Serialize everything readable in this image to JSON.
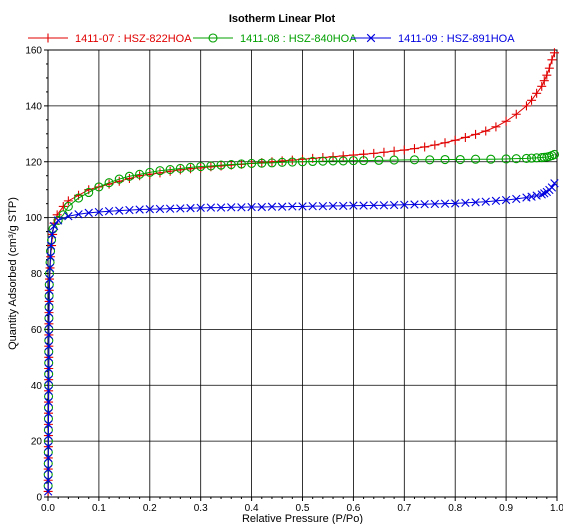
{
  "chart_data": {
    "type": "line",
    "title": "Isotherm Linear Plot",
    "xlabel": "Relative Pressure (P/Po)",
    "ylabel": "Quantity Adsorbed (cm³/g STP)",
    "xlim": [
      0,
      1.0
    ],
    "ylim": [
      0,
      160
    ],
    "xticks": [
      "0.0",
      "0.1",
      "0.2",
      "0.3",
      "0.4",
      "0.5",
      "0.6",
      "0.7",
      "0.8",
      "0.9",
      "1.0"
    ],
    "yticks": [
      "0",
      "20",
      "40",
      "60",
      "80",
      "100",
      "120",
      "140",
      "160"
    ],
    "grid": true,
    "legend_position": "top",
    "series": [
      {
        "name": "1411-07 : HSZ-822HOA",
        "color": "#e00000",
        "marker": "plus",
        "points": [
          [
            0.0003,
            2
          ],
          [
            0.0004,
            6
          ],
          [
            0.0005,
            10
          ],
          [
            0.0006,
            14
          ],
          [
            0.0007,
            18
          ],
          [
            0.0008,
            22
          ],
          [
            0.0009,
            26
          ],
          [
            0.001,
            30
          ],
          [
            0.0011,
            34
          ],
          [
            0.0012,
            38
          ],
          [
            0.0013,
            42
          ],
          [
            0.0014,
            46
          ],
          [
            0.0015,
            50
          ],
          [
            0.0016,
            54
          ],
          [
            0.0017,
            58
          ],
          [
            0.0018,
            62
          ],
          [
            0.002,
            66
          ],
          [
            0.0022,
            70
          ],
          [
            0.0025,
            74
          ],
          [
            0.003,
            78
          ],
          [
            0.004,
            82
          ],
          [
            0.005,
            86
          ],
          [
            0.007,
            90
          ],
          [
            0.009,
            94
          ],
          [
            0.012,
            98
          ],
          [
            0.018,
            101
          ],
          [
            0.03,
            104
          ],
          [
            0.04,
            106
          ],
          [
            0.06,
            108
          ],
          [
            0.08,
            110
          ],
          [
            0.1,
            111
          ],
          [
            0.12,
            112
          ],
          [
            0.14,
            113
          ],
          [
            0.16,
            114
          ],
          [
            0.18,
            115
          ],
          [
            0.2,
            115.5
          ],
          [
            0.22,
            116
          ],
          [
            0.24,
            116.6
          ],
          [
            0.26,
            117.1
          ],
          [
            0.28,
            117.5
          ],
          [
            0.3,
            117.8
          ],
          [
            0.32,
            118.2
          ],
          [
            0.34,
            118.5
          ],
          [
            0.36,
            118.8
          ],
          [
            0.38,
            119.1
          ],
          [
            0.4,
            119.4
          ],
          [
            0.42,
            119.7
          ],
          [
            0.44,
            120
          ],
          [
            0.46,
            120.3
          ],
          [
            0.48,
            120.6
          ],
          [
            0.5,
            120.9
          ],
          [
            0.52,
            121.2
          ],
          [
            0.54,
            121.5
          ],
          [
            0.56,
            121.8
          ],
          [
            0.58,
            122.1
          ],
          [
            0.6,
            122.4
          ],
          [
            0.62,
            122.7
          ],
          [
            0.64,
            123
          ],
          [
            0.66,
            123.4
          ],
          [
            0.68,
            123.8
          ],
          [
            0.7,
            124.2
          ],
          [
            0.72,
            124.7
          ],
          [
            0.74,
            125.3
          ],
          [
            0.76,
            126
          ],
          [
            0.78,
            126.8
          ],
          [
            0.8,
            127.7
          ],
          [
            0.82,
            128.7
          ],
          [
            0.84,
            129.8
          ],
          [
            0.86,
            131
          ],
          [
            0.88,
            132.5
          ],
          [
            0.9,
            134.5
          ],
          [
            0.92,
            137
          ],
          [
            0.94,
            140
          ],
          [
            0.95,
            142
          ],
          [
            0.96,
            144.5
          ],
          [
            0.97,
            147
          ],
          [
            0.975,
            149
          ],
          [
            0.98,
            151
          ],
          [
            0.985,
            153.5
          ],
          [
            0.99,
            156.5
          ],
          [
            0.995,
            159
          ]
        ]
      },
      {
        "name": "1411-08 : HSZ-840HOA",
        "color": "#00a000",
        "marker": "circle",
        "points": [
          [
            0.0003,
            4
          ],
          [
            0.0004,
            8
          ],
          [
            0.0005,
            12
          ],
          [
            0.0006,
            16
          ],
          [
            0.0007,
            20
          ],
          [
            0.0008,
            24
          ],
          [
            0.0009,
            28
          ],
          [
            0.001,
            32
          ],
          [
            0.0011,
            36
          ],
          [
            0.0012,
            40
          ],
          [
            0.0013,
            44
          ],
          [
            0.0014,
            48
          ],
          [
            0.0015,
            52
          ],
          [
            0.0016,
            56
          ],
          [
            0.0017,
            60
          ],
          [
            0.0018,
            64
          ],
          [
            0.002,
            68
          ],
          [
            0.0022,
            72
          ],
          [
            0.0025,
            76
          ],
          [
            0.003,
            80
          ],
          [
            0.004,
            84
          ],
          [
            0.005,
            88
          ],
          [
            0.007,
            92
          ],
          [
            0.01,
            96
          ],
          [
            0.02,
            99
          ],
          [
            0.03,
            101
          ],
          [
            0.04,
            104
          ],
          [
            0.06,
            107
          ],
          [
            0.08,
            109
          ],
          [
            0.1,
            111
          ],
          [
            0.12,
            112.5
          ],
          [
            0.14,
            113.8
          ],
          [
            0.16,
            114.8
          ],
          [
            0.18,
            115.5
          ],
          [
            0.2,
            116.2
          ],
          [
            0.22,
            116.8
          ],
          [
            0.24,
            117.2
          ],
          [
            0.26,
            117.6
          ],
          [
            0.28,
            118
          ],
          [
            0.3,
            118.3
          ],
          [
            0.32,
            118.5
          ],
          [
            0.34,
            118.8
          ],
          [
            0.36,
            119
          ],
          [
            0.38,
            119.2
          ],
          [
            0.4,
            119.4
          ],
          [
            0.42,
            119.5
          ],
          [
            0.44,
            119.6
          ],
          [
            0.46,
            119.8
          ],
          [
            0.48,
            119.9
          ],
          [
            0.5,
            120
          ],
          [
            0.52,
            120.1
          ],
          [
            0.54,
            120.2
          ],
          [
            0.56,
            120.3
          ],
          [
            0.58,
            120.3
          ],
          [
            0.6,
            120.4
          ],
          [
            0.62,
            120.4
          ],
          [
            0.65,
            120.5
          ],
          [
            0.68,
            120.6
          ],
          [
            0.72,
            120.7
          ],
          [
            0.75,
            120.7
          ],
          [
            0.78,
            120.8
          ],
          [
            0.81,
            120.8
          ],
          [
            0.84,
            120.9
          ],
          [
            0.87,
            120.9
          ],
          [
            0.9,
            121
          ],
          [
            0.92,
            121.1
          ],
          [
            0.94,
            121.2
          ],
          [
            0.95,
            121.3
          ],
          [
            0.96,
            121.4
          ],
          [
            0.97,
            121.5
          ],
          [
            0.975,
            121.6
          ],
          [
            0.98,
            121.7
          ],
          [
            0.985,
            121.9
          ],
          [
            0.99,
            122.2
          ],
          [
            0.995,
            122.6
          ]
        ]
      },
      {
        "name": "1411-09 : HSZ-891HOA",
        "color": "#0000e0",
        "marker": "x",
        "points": [
          [
            0.0003,
            2
          ],
          [
            0.0004,
            6
          ],
          [
            0.0005,
            10
          ],
          [
            0.0006,
            14
          ],
          [
            0.0007,
            18
          ],
          [
            0.0008,
            22
          ],
          [
            0.0009,
            26
          ],
          [
            0.001,
            30
          ],
          [
            0.0011,
            34
          ],
          [
            0.0012,
            38
          ],
          [
            0.0013,
            42
          ],
          [
            0.0014,
            46
          ],
          [
            0.0015,
            50
          ],
          [
            0.0016,
            54
          ],
          [
            0.0017,
            58
          ],
          [
            0.0018,
            62
          ],
          [
            0.002,
            66
          ],
          [
            0.0022,
            70
          ],
          [
            0.0025,
            74
          ],
          [
            0.003,
            78
          ],
          [
            0.004,
            82
          ],
          [
            0.005,
            86
          ],
          [
            0.006,
            90
          ],
          [
            0.008,
            94
          ],
          [
            0.012,
            97
          ],
          [
            0.02,
            99
          ],
          [
            0.04,
            100.5
          ],
          [
            0.06,
            101.2
          ],
          [
            0.08,
            101.7
          ],
          [
            0.1,
            102
          ],
          [
            0.12,
            102.3
          ],
          [
            0.14,
            102.5
          ],
          [
            0.16,
            102.7
          ],
          [
            0.18,
            102.9
          ],
          [
            0.2,
            103
          ],
          [
            0.22,
            103.1
          ],
          [
            0.24,
            103.2
          ],
          [
            0.26,
            103.3
          ],
          [
            0.28,
            103.4
          ],
          [
            0.3,
            103.5
          ],
          [
            0.32,
            103.6
          ],
          [
            0.34,
            103.6
          ],
          [
            0.36,
            103.7
          ],
          [
            0.38,
            103.7
          ],
          [
            0.4,
            103.8
          ],
          [
            0.42,
            103.8
          ],
          [
            0.44,
            103.9
          ],
          [
            0.46,
            103.9
          ],
          [
            0.48,
            104
          ],
          [
            0.5,
            104
          ],
          [
            0.52,
            104.1
          ],
          [
            0.54,
            104.1
          ],
          [
            0.56,
            104.2
          ],
          [
            0.58,
            104.2
          ],
          [
            0.6,
            104.3
          ],
          [
            0.62,
            104.3
          ],
          [
            0.64,
            104.4
          ],
          [
            0.66,
            104.4
          ],
          [
            0.68,
            104.5
          ],
          [
            0.7,
            104.6
          ],
          [
            0.72,
            104.7
          ],
          [
            0.74,
            104.8
          ],
          [
            0.76,
            104.9
          ],
          [
            0.78,
            105
          ],
          [
            0.8,
            105.1
          ],
          [
            0.82,
            105.3
          ],
          [
            0.84,
            105.5
          ],
          [
            0.86,
            105.7
          ],
          [
            0.88,
            106
          ],
          [
            0.9,
            106.3
          ],
          [
            0.92,
            106.7
          ],
          [
            0.94,
            107.2
          ],
          [
            0.95,
            107.5
          ],
          [
            0.96,
            107.9
          ],
          [
            0.97,
            108.3
          ],
          [
            0.975,
            108.7
          ],
          [
            0.98,
            109.2
          ],
          [
            0.985,
            109.9
          ],
          [
            0.99,
            110.8
          ],
          [
            0.995,
            112.3
          ]
        ]
      }
    ]
  }
}
